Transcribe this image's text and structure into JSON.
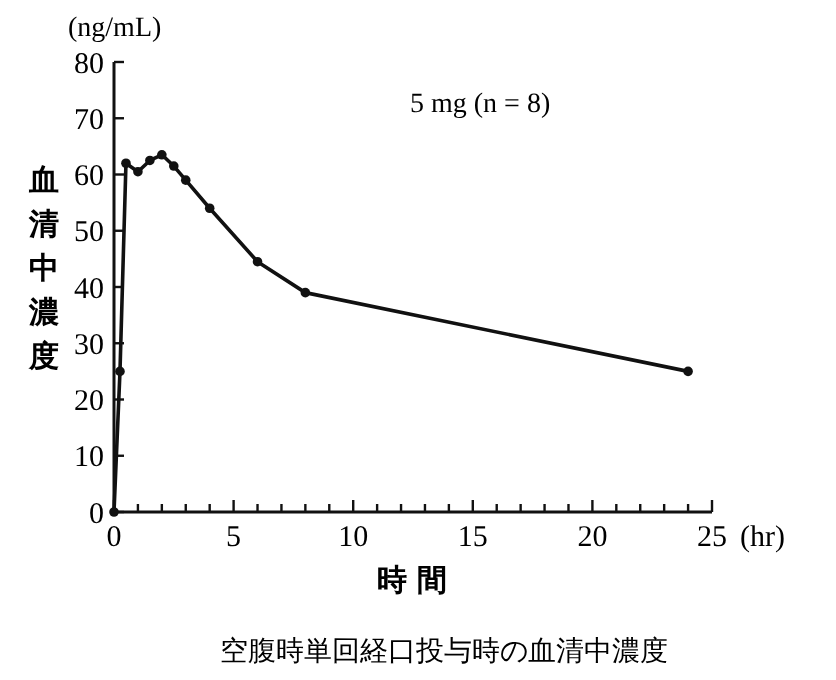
{
  "chart_data": {
    "type": "line",
    "title": "空腹時単回経口投与時の血清中濃度",
    "xlabel": "時 間",
    "ylabel": "血清中濃度",
    "annotations": [
      "(ng/mL)",
      "(hr)",
      "5 mg (n = 8)"
    ],
    "x": [
      0,
      0.25,
      0.5,
      1,
      1.5,
      2,
      2.5,
      3,
      4,
      6,
      8,
      24
    ],
    "series": [
      {
        "color": "#111111",
        "values": [
          0,
          25,
          62,
          60.5,
          62.5,
          63.5,
          61.5,
          59,
          54,
          44.5,
          39,
          25
        ]
      }
    ],
    "xlim": [
      0,
      25
    ],
    "xticks": [
      0,
      {
        "value": 1,
        "label": null
      },
      {
        "value": 2,
        "label": null
      },
      {
        "value": 3,
        "label": null
      },
      {
        "value": 4,
        "label": null
      },
      5,
      {
        "value": 6,
        "label": null
      },
      {
        "value": 7,
        "label": null
      },
      {
        "value": 8,
        "label": null
      },
      {
        "value": 9,
        "label": null
      },
      10,
      {
        "value": 11,
        "label": null
      },
      {
        "value": 12,
        "label": null
      },
      {
        "value": 13,
        "label": null
      },
      {
        "value": 14,
        "label": null
      },
      15,
      {
        "value": 16,
        "label": null
      },
      {
        "value": 17,
        "label": null
      },
      {
        "value": 18,
        "label": null
      },
      {
        "value": 19,
        "label": null
      },
      20,
      {
        "value": 21,
        "label": null
      },
      {
        "value": 22,
        "label": null
      },
      {
        "value": 23,
        "label": null
      },
      {
        "value": 24,
        "label": null
      },
      25
    ],
    "ylim": [
      0,
      80
    ],
    "yticks": [
      0,
      10,
      20,
      30,
      40,
      50,
      60,
      70,
      80
    ],
    "grid": false,
    "marker": "circle",
    "line_style": "solid"
  }
}
